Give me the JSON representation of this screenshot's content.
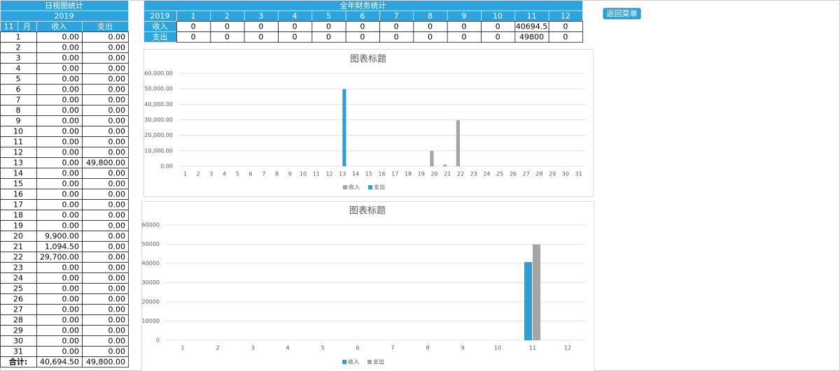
{
  "daily_table": {
    "title": "日视图统计",
    "year": "2019",
    "header": [
      "11",
      "月",
      "收入",
      "支出"
    ],
    "rows": [
      [
        "1",
        "0.00",
        "0.00"
      ],
      [
        "2",
        "0.00",
        "0.00"
      ],
      [
        "3",
        "0.00",
        "0.00"
      ],
      [
        "4",
        "0.00",
        "0.00"
      ],
      [
        "5",
        "0.00",
        "0.00"
      ],
      [
        "6",
        "0.00",
        "0.00"
      ],
      [
        "7",
        "0.00",
        "0.00"
      ],
      [
        "8",
        "0.00",
        "0.00"
      ],
      [
        "9",
        "0.00",
        "0.00"
      ],
      [
        "10",
        "0.00",
        "0.00"
      ],
      [
        "11",
        "0.00",
        "0.00"
      ],
      [
        "12",
        "0.00",
        "0.00"
      ],
      [
        "13",
        "0.00",
        "49,800.00"
      ],
      [
        "14",
        "0.00",
        "0.00"
      ],
      [
        "15",
        "0.00",
        "0.00"
      ],
      [
        "16",
        "0.00",
        "0.00"
      ],
      [
        "17",
        "0.00",
        "0.00"
      ],
      [
        "18",
        "0.00",
        "0.00"
      ],
      [
        "19",
        "0.00",
        "0.00"
      ],
      [
        "20",
        "9,900.00",
        "0.00"
      ],
      [
        "21",
        "1,094.50",
        "0.00"
      ],
      [
        "22",
        "29,700.00",
        "0.00"
      ],
      [
        "23",
        "0.00",
        "0.00"
      ],
      [
        "24",
        "0.00",
        "0.00"
      ],
      [
        "25",
        "0.00",
        "0.00"
      ],
      [
        "26",
        "0.00",
        "0.00"
      ],
      [
        "27",
        "0.00",
        "0.00"
      ],
      [
        "28",
        "0.00",
        "0.00"
      ],
      [
        "29",
        "0.00",
        "0.00"
      ],
      [
        "30",
        "0.00",
        "0.00"
      ],
      [
        "31",
        "0.00",
        "0.00"
      ]
    ],
    "total": [
      "合计:",
      "40,694.50",
      "49,800.00"
    ]
  },
  "yearly_table": {
    "title": "全年财务统计",
    "header": [
      "2019",
      "1",
      "2",
      "3",
      "4",
      "5",
      "6",
      "7",
      "8",
      "9",
      "10",
      "11",
      "12"
    ],
    "rows": [
      [
        "收入",
        "0",
        "0",
        "0",
        "0",
        "0",
        "0",
        "0",
        "0",
        "0",
        "0",
        "40694.5",
        "0"
      ],
      [
        "支出",
        "0",
        "0",
        "0",
        "0",
        "0",
        "0",
        "0",
        "0",
        "0",
        "0",
        "49800",
        "0"
      ]
    ]
  },
  "button": "返回菜单",
  "chart_data": [
    {
      "type": "bar",
      "title": "图表标题",
      "categories": [
        1,
        2,
        3,
        4,
        5,
        6,
        7,
        8,
        9,
        10,
        11,
        12,
        13,
        14,
        15,
        16,
        17,
        18,
        19,
        20,
        21,
        22,
        23,
        24,
        25,
        26,
        27,
        28,
        29,
        30,
        31
      ],
      "series": [
        {
          "name": "收入",
          "color": "#a5a5a5",
          "values": [
            0,
            0,
            0,
            0,
            0,
            0,
            0,
            0,
            0,
            0,
            0,
            0,
            0,
            0,
            0,
            0,
            0,
            0,
            0,
            9900,
            1094.5,
            29700,
            0,
            0,
            0,
            0,
            0,
            0,
            0,
            0,
            0
          ]
        },
        {
          "name": "支出",
          "color": "#2a9fd8",
          "values": [
            0,
            0,
            0,
            0,
            0,
            0,
            0,
            0,
            0,
            0,
            0,
            0,
            49800,
            0,
            0,
            0,
            0,
            0,
            0,
            0,
            0,
            0,
            0,
            0,
            0,
            0,
            0,
            0,
            0,
            0,
            0
          ]
        }
      ],
      "ylim": [
        0,
        60000
      ],
      "yticks": [
        {
          "value": 0,
          "label": "0.00"
        },
        {
          "value": 10000,
          "label": "10,000.00"
        },
        {
          "value": 20000,
          "label": "20,000.00"
        },
        {
          "value": 30000,
          "label": "30,000.00"
        },
        {
          "value": 40000,
          "label": "40,000.00"
        },
        {
          "value": 50000,
          "label": "50,000.00"
        },
        {
          "value": 60000,
          "label": "60,000.00"
        }
      ],
      "grid": true,
      "legend": "bottom"
    },
    {
      "type": "bar",
      "title": "图表标题",
      "categories": [
        1,
        2,
        3,
        4,
        5,
        6,
        7,
        8,
        9,
        10,
        11,
        12
      ],
      "series": [
        {
          "name": "收入",
          "color": "#2a9fd8",
          "values": [
            0,
            0,
            0,
            0,
            0,
            0,
            0,
            0,
            0,
            0,
            40694.5,
            0
          ]
        },
        {
          "name": "支出",
          "color": "#a5a5a5",
          "values": [
            0,
            0,
            0,
            0,
            0,
            0,
            0,
            0,
            0,
            0,
            49800,
            0
          ]
        }
      ],
      "ylim": [
        0,
        60000
      ],
      "yticks": [
        0,
        10000,
        20000,
        30000,
        40000,
        50000,
        60000
      ],
      "grid": true,
      "legend": "bottom"
    }
  ]
}
